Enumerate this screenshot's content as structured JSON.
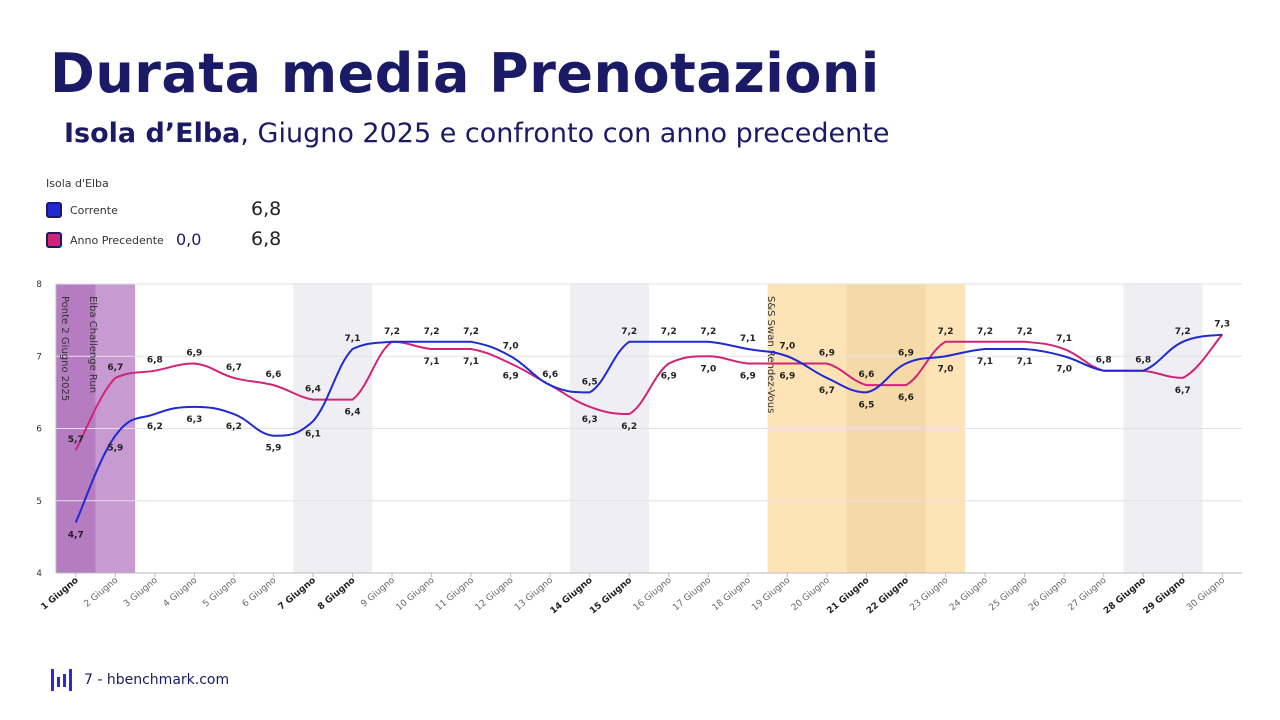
{
  "header": {
    "title": "Durata media Prenotazioni",
    "subtitle_bold": "Isola d’Elba",
    "subtitle_rest": ", Giugno 2025 e confronto con anno precedente"
  },
  "legend": {
    "title": "Isola d'Elba",
    "items": [
      {
        "label": "Corrente",
        "value": "6,8",
        "extra": "",
        "color": "#1f2bd1"
      },
      {
        "label": "Anno Precedente",
        "value": "6,8",
        "extra": "0,0",
        "color": "#d22477"
      }
    ]
  },
  "footer": {
    "text": "7 - hbenchmark.com"
  },
  "colors": {
    "current": "#1f2bd1",
    "previous": "#d22477",
    "title": "#1b1a66"
  },
  "chart_data": {
    "type": "line",
    "title": "",
    "xlabel": "",
    "ylabel": "",
    "ylim": [
      4,
      8
    ],
    "yticks": [
      "4",
      "5",
      "6",
      "7",
      "8"
    ],
    "grid": true,
    "categories": [
      "1 Giugno",
      "2 Giugno",
      "3 Giugno",
      "4 Giugno",
      "5 Giugno",
      "6 Giugno",
      "7 Giugno",
      "8 Giugno",
      "9 Giugno",
      "10 Giugno",
      "11 Giugno",
      "12 Giugno",
      "13 Giugno",
      "14 Giugno",
      "15 Giugno",
      "16 Giugno",
      "17 Giugno",
      "18 Giugno",
      "19 Giugno",
      "20 Giugno",
      "21 Giugno",
      "22 Giugno",
      "23 Giugno",
      "24 Giugno",
      "25 Giugno",
      "26 Giugno",
      "27 Giugno",
      "28 Giugno",
      "29 Giugno",
      "30 Giugno"
    ],
    "bold_categories": [
      "1 Giugno",
      "7 Giugno",
      "8 Giugno",
      "14 Giugno",
      "15 Giugno",
      "21 Giugno",
      "22 Giugno",
      "28 Giugno",
      "29 Giugno"
    ],
    "series": [
      {
        "name": "Corrente",
        "color": "#1f2bd1",
        "values": [
          4.7,
          5.9,
          6.2,
          6.3,
          6.2,
          5.9,
          6.1,
          7.1,
          7.2,
          7.2,
          7.2,
          7.0,
          6.6,
          6.5,
          7.2,
          7.2,
          7.2,
          7.1,
          7.0,
          6.7,
          6.5,
          6.9,
          7.0,
          7.1,
          7.1,
          7.0,
          6.8,
          6.8,
          7.2,
          7.3
        ],
        "labels": [
          "4,7",
          "5,9",
          "6,2",
          "6,3",
          "6,2",
          "5,9",
          "6,1",
          "7,1",
          "7,2",
          "7,2",
          "7,2",
          "7,0",
          "6,6",
          "6,5",
          "7,2",
          "7,2",
          "7,2",
          "7,1",
          "7,0",
          "6,7",
          "6,5",
          "6,9",
          "7,0",
          "7,1",
          "7,1",
          "7,0",
          "6,8",
          "6,8",
          "7,2",
          "7,3"
        ]
      },
      {
        "name": "Anno Precedente",
        "color": "#d22477",
        "values": [
          5.7,
          6.7,
          6.8,
          6.9,
          6.7,
          6.6,
          6.4,
          6.4,
          7.2,
          7.1,
          7.1,
          6.9,
          6.6,
          6.3,
          6.2,
          6.9,
          7.0,
          6.9,
          6.9,
          6.9,
          6.6,
          6.6,
          7.2,
          7.2,
          7.2,
          7.1,
          6.8,
          6.8,
          6.7,
          7.3
        ],
        "labels": [
          "5,7",
          "6,7",
          "6,8",
          "6,9",
          "6,7",
          "6,6",
          "6,4",
          "6,4",
          "7,2",
          "7,1",
          "7,1",
          "6,9",
          "6,6",
          "6,3",
          "6,2",
          "6,9",
          "7,0",
          "6,9",
          "6,9",
          "6,9",
          "6,6",
          "6,6",
          "7,2",
          "7,2",
          "7,2",
          "7,1",
          "6,8",
          "6,8",
          "6,7",
          "7,3"
        ]
      }
    ],
    "events": [
      {
        "label": "Ponte 2 Giugno 2025",
        "from": "1 Giugno",
        "to": "1 Giugno",
        "color": "#b57cc2"
      },
      {
        "label": "Elba Challenge Run",
        "from": "2 Giugno",
        "to": "2 Giugno",
        "color": "#c79bd2"
      },
      {
        "label": "S&S Swan Rendez-Vous",
        "from": "19 Giugno",
        "to": "23 Giugno",
        "color": "#fde3b6"
      }
    ],
    "weekend_bands": [
      {
        "from": "7 Giugno",
        "to": "8 Giugno"
      },
      {
        "from": "14 Giugno",
        "to": "15 Giugno"
      },
      {
        "from": "21 Giugno",
        "to": "22 Giugno"
      },
      {
        "from": "28 Giugno",
        "to": "29 Giugno"
      }
    ]
  }
}
